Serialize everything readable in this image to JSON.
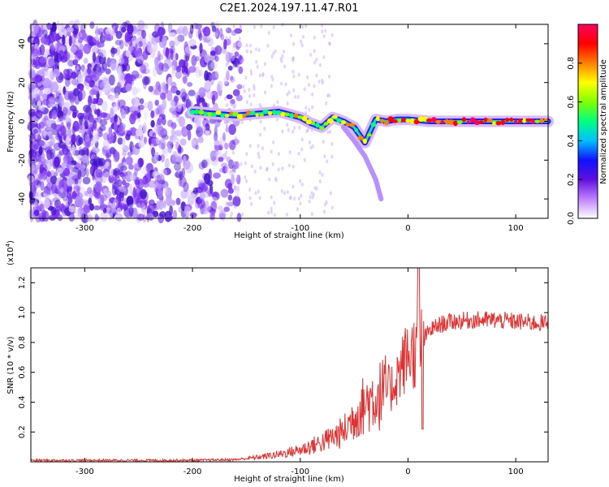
{
  "title": "C2E1.2024.197.11.47.R01",
  "chart_data": [
    {
      "type": "heatmap",
      "xlabel": "Height of straight line (km)",
      "ylabel": "Frequency (Hz)",
      "xlim": [
        -350,
        130
      ],
      "ylim": [
        -50,
        50
      ],
      "xticks": [
        -300,
        -200,
        -100,
        0,
        100
      ],
      "yticks": [
        -40,
        -20,
        0,
        20,
        40
      ],
      "colorbar": {
        "label": "Normalized spectral amplitude",
        "range": [
          0.0,
          1.0
        ],
        "ticks": [
          "0.0",
          "0.2",
          "0.4",
          "0.6",
          "0.8"
        ],
        "colors": [
          "#ffffff",
          "#c080ff",
          "#6010e0",
          "#1010ff",
          "#00c0ff",
          "#00ff80",
          "#80ff00",
          "#ffff00",
          "#ff8000",
          "#ff0000",
          "#ff0060"
        ]
      },
      "signal_track": {
        "x": [
          -200,
          -180,
          -160,
          -140,
          -120,
          -100,
          -90,
          -80,
          -70,
          -60,
          -50,
          -40,
          -30,
          -20,
          -10,
          0,
          20,
          50,
          80,
          110,
          130
        ],
        "y": [
          5,
          4,
          3,
          4,
          5,
          2,
          -1,
          -3,
          2,
          0,
          -3,
          -11,
          1,
          0,
          1,
          1,
          0,
          0,
          0,
          0,
          0
        ],
        "branch": {
          "x": [
            -60,
            -50,
            -40,
            -30,
            -25
          ],
          "y": [
            -3,
            -10,
            -18,
            -30,
            -40
          ]
        }
      }
    },
    {
      "type": "line",
      "xlabel": "Height of straight line (km)",
      "ylabel": "SNR (10 * v/v)",
      "yscale_label": "(x10",
      "yscale_exponent": "4",
      "yscale_suffix": ")",
      "xlim": [
        -350,
        130
      ],
      "ylim": [
        0,
        1.3
      ],
      "xticks": [
        -300,
        -200,
        -100,
        0,
        100
      ],
      "yticks": [
        "0.2",
        "0.4",
        "0.6",
        "0.8",
        "1.0",
        "1.2"
      ],
      "color": "#e03030",
      "series": [
        {
          "x": [
            -350,
            -200,
            -160,
            -140,
            -120,
            -100,
            -80,
            -60,
            -45,
            -35,
            -25,
            -15,
            -5,
            0,
            10,
            15,
            20,
            30,
            40,
            60,
            80,
            100,
            120,
            130
          ],
          "y": [
            0.01,
            0.01,
            0.015,
            0.03,
            0.05,
            0.08,
            0.13,
            0.2,
            0.35,
            0.42,
            0.45,
            0.5,
            0.65,
            0.72,
            0.75,
            0.82,
            0.88,
            0.92,
            0.94,
            0.95,
            0.95,
            0.94,
            0.93,
            0.93
          ]
        }
      ]
    }
  ]
}
